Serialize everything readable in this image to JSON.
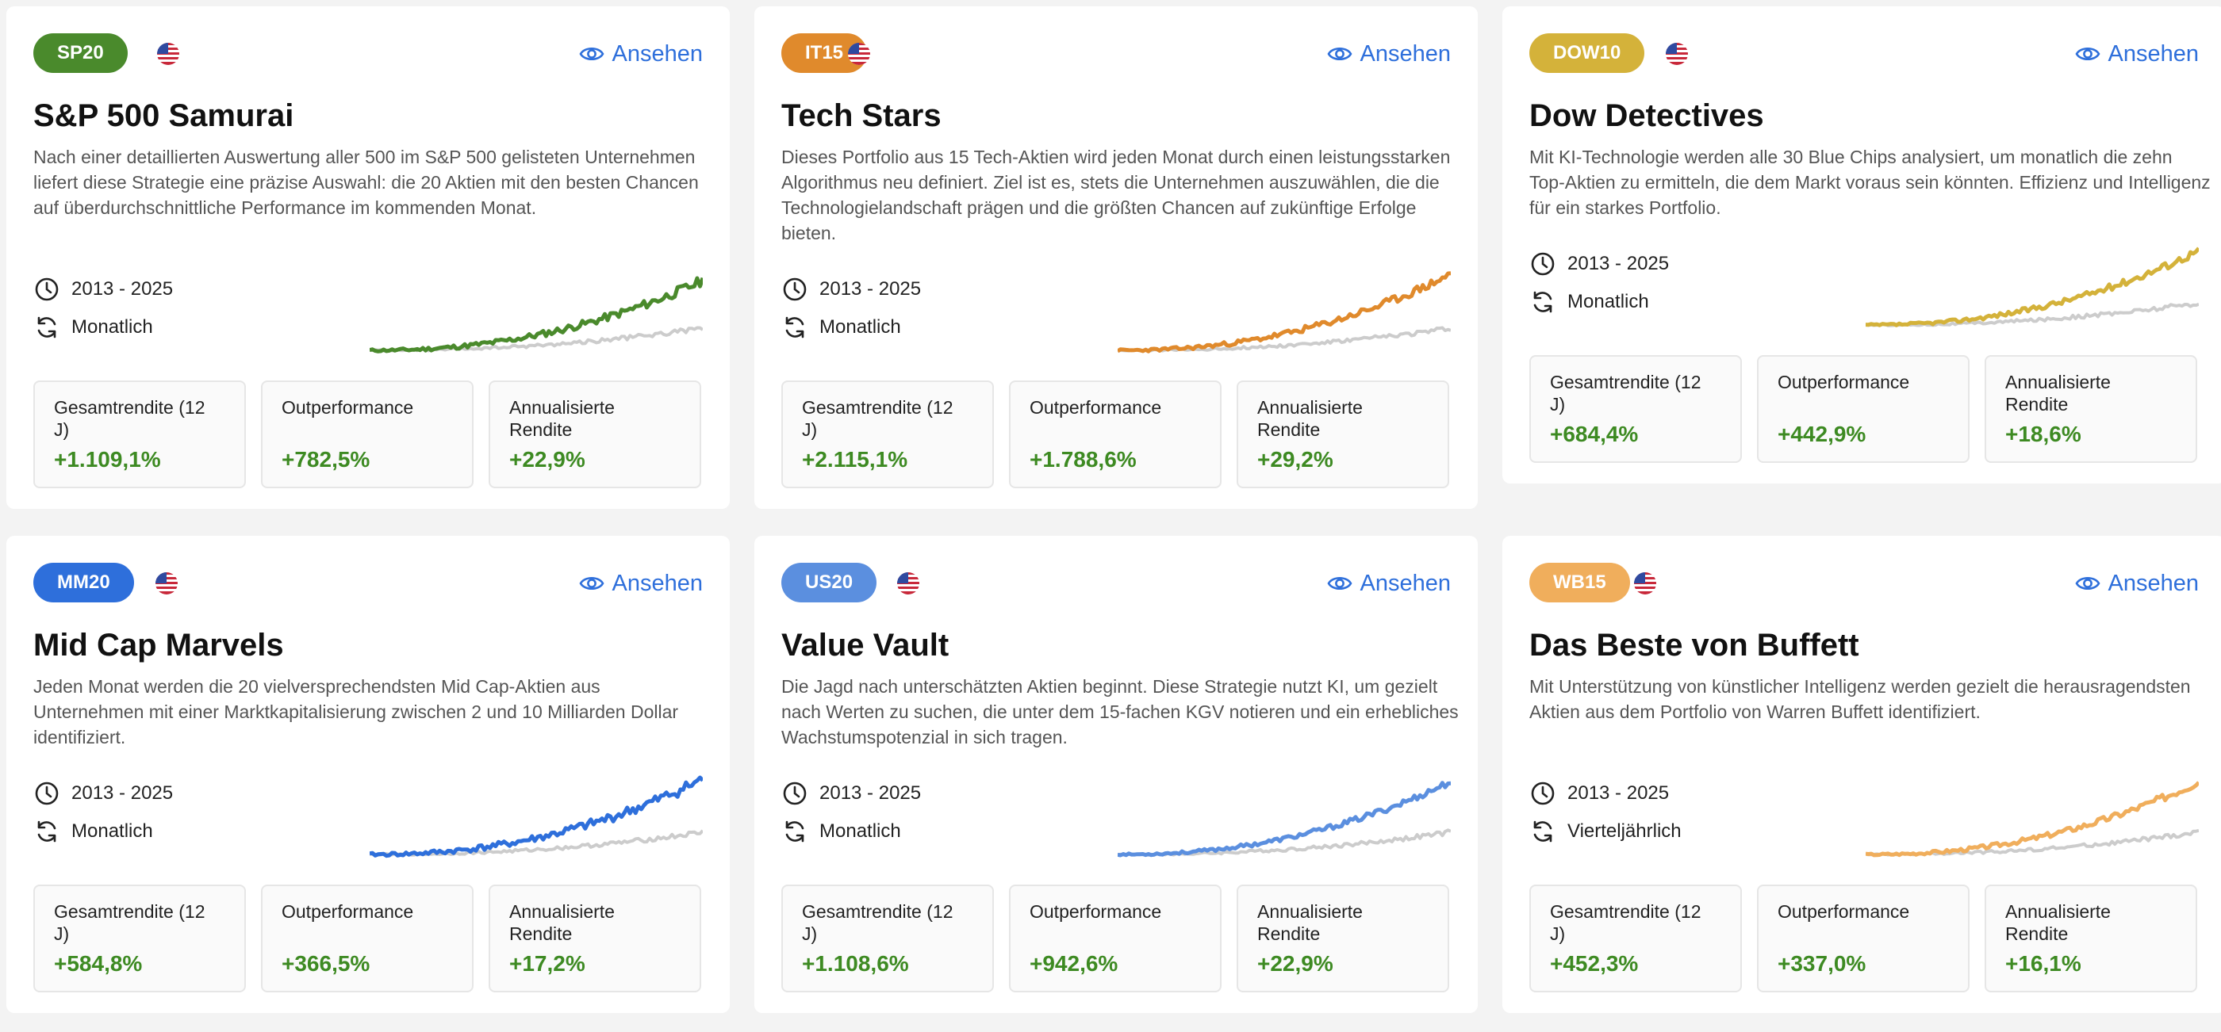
{
  "view_label": "Ansehen",
  "cards": [
    {
      "code": "SP20",
      "color": "#4a8a2c",
      "title": "S&P 500 Samurai",
      "description": "Nach einer detaillierten Auswertung aller 500 im S&P 500 gelisteten Unternehmen liefert diese Strategie eine präzise Auswahl: die 20 Aktien mit den besten Chancen auf überdurchschnittliche Performance im kommenden Monat.",
      "period": "2013 - 2025",
      "rebalance": "Monatlich",
      "stats": [
        {
          "label": "Gesamtrendite (12 J)",
          "value": "+1.109,1%"
        },
        {
          "label": "Outperformance",
          "value": "+782,5%"
        },
        {
          "label": "Annualisierte Rendite",
          "value": "+22,9%"
        }
      ]
    },
    {
      "code": "IT15",
      "color": "#e08a2c",
      "title": "Tech Stars",
      "description": "Dieses Portfolio aus 15 Tech-Aktien wird jeden Monat durch einen leistungsstarken Algorithmus neu definiert. Ziel ist es, stets die Unternehmen auszuwählen, die die Technologielandschaft prägen und die größten Chancen auf zukünftige Erfolge bieten.",
      "period": "2013 - 2025",
      "rebalance": "Monatlich",
      "stats": [
        {
          "label": "Gesamtrendite (12 J)",
          "value": "+2.115,1%"
        },
        {
          "label": "Outperformance",
          "value": "+1.788,6%"
        },
        {
          "label": "Annualisierte Rendite",
          "value": "+29,2%"
        }
      ]
    },
    {
      "code": "DOW10",
      "color": "#d4b23a",
      "title": "Dow Detectives",
      "description": "Mit KI-Technologie werden alle 30 Blue Chips analysiert, um monatlich die zehn Top-Aktien zu ermitteln, die dem Markt voraus sein könnten. Effizienz und Intelligenz für ein starkes Portfolio.",
      "period": "2013 - 2025",
      "rebalance": "Monatlich",
      "stats": [
        {
          "label": "Gesamtrendite (12 J)",
          "value": "+684,4%"
        },
        {
          "label": "Outperformance",
          "value": "+442,9%"
        },
        {
          "label": "Annualisierte Rendite",
          "value": "+18,6%"
        }
      ]
    },
    {
      "code": "MM20",
      "color": "#2e6fdb",
      "title": "Mid Cap Marvels",
      "description": "Jeden Monat werden die 20 vielversprechendsten Mid Cap-Aktien aus Unternehmen mit einer Marktkapitalisierung zwischen 2 und 10 Milliarden Dollar identifiziert.",
      "period": "2013 - 2025",
      "rebalance": "Monatlich",
      "stats": [
        {
          "label": "Gesamtrendite (12 J)",
          "value": "+584,8%"
        },
        {
          "label": "Outperformance",
          "value": "+366,5%"
        },
        {
          "label": "Annualisierte Rendite",
          "value": "+17,2%"
        }
      ]
    },
    {
      "code": "US20",
      "color": "#5b8fdf",
      "title": "Value Vault",
      "description": "Die Jagd nach unterschätzten Aktien beginnt. Diese Strategie nutzt KI, um gezielt nach Werten zu suchen, die unter dem 15-fachen KGV notieren und ein erhebliches Wachstumspotenzial in sich tragen.",
      "period": "2013 - 2025",
      "rebalance": "Monatlich",
      "stats": [
        {
          "label": "Gesamtrendite (12 J)",
          "value": "+1.108,6%"
        },
        {
          "label": "Outperformance",
          "value": "+942,6%"
        },
        {
          "label": "Annualisierte Rendite",
          "value": "+22,9%"
        }
      ]
    },
    {
      "code": "WB15",
      "color": "#f0ae5c",
      "title": "Das Beste von Buffett",
      "description": "Mit Unterstützung von künstlicher Intelligenz werden gezielt die herausragendsten Aktien aus dem Portfolio von Warren Buffett identifiziert.",
      "period": "2013 - 2025",
      "rebalance": "Vierteljährlich",
      "stats": [
        {
          "label": "Gesamtrendite (12 J)",
          "value": "+452,3%"
        },
        {
          "label": "Outperformance",
          "value": "+337,0%"
        },
        {
          "label": "Annualisierte Rendite",
          "value": "+16,1%"
        }
      ]
    }
  ]
}
